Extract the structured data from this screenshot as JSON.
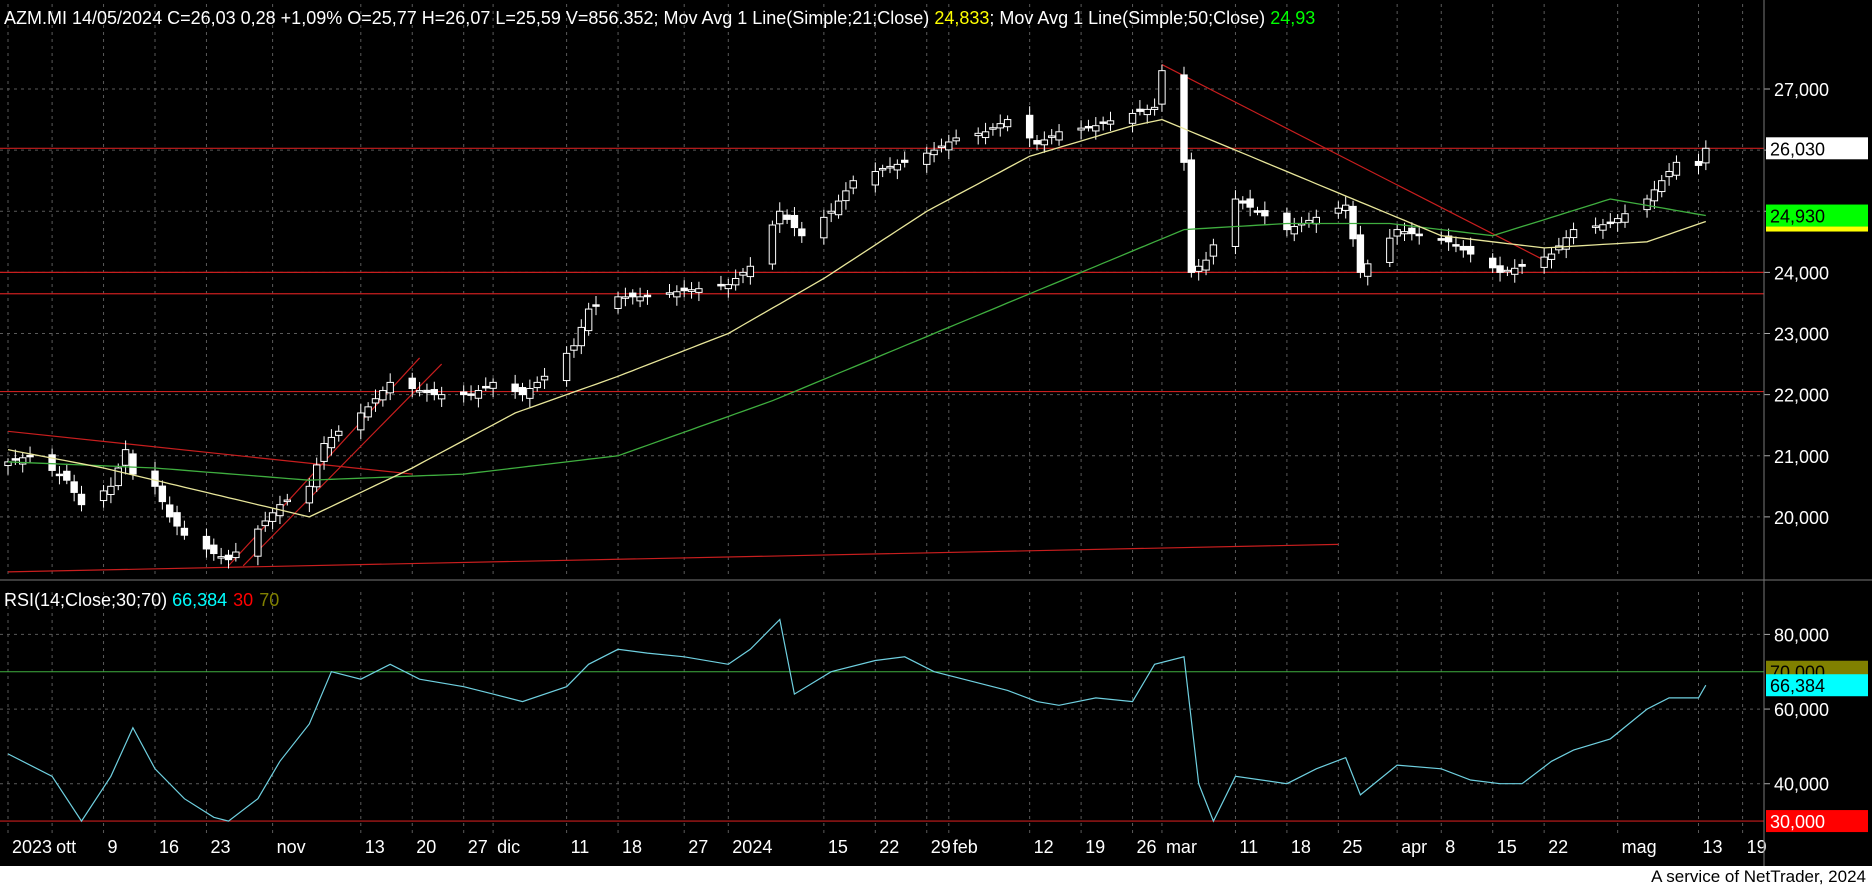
{
  "header": {
    "symbol_info": "AZM.MI 14/05/2024 C=26,03 0,28 +1,09% O=25,77 H=26,07 L=25,59 V=856.352",
    "ma21_label": "; Mov Avg 1 Line(Simple;21;Close) ",
    "ma21_value": "24,833",
    "ma50_label": "; Mov Avg 1 Line(Simple;50;Close) ",
    "ma50_value": "24,93"
  },
  "rsi_header": {
    "label": "RSI(14;Close;30;70) ",
    "value": "66,384",
    "low": "30",
    "high": "70"
  },
  "footer": {
    "text": "A service of NetTrader, 2024"
  },
  "colors": {
    "background": "#000000",
    "grid": "#5a5a5a",
    "candle": "#ffffff",
    "ma21": "#e8e69a",
    "ma50": "#3fae3f",
    "trendline": "#c81e1e",
    "rsi_line": "#6fd0e0",
    "rsi_value": "#00ffff",
    "rsi_high": "#808000",
    "last_price_tag": "#ffffff",
    "ma50_tag": "#00ff00",
    "ma21_tag": "#ffff00",
    "rsi_low_tag": "#ff0000"
  },
  "chart_data": [
    {
      "type": "candlestick",
      "ylim": [
        19000,
        27900
      ],
      "yticks": [
        20000,
        21000,
        22000,
        23000,
        24000,
        25000,
        26000,
        27000
      ],
      "ytick_labels": [
        "20,000",
        "21,000",
        "22,000",
        "23,000",
        "24,000",
        "",
        "26,000",
        "27,000"
      ],
      "price_tags": [
        {
          "label": "26,030",
          "value": 26030,
          "color": "#ffffff"
        },
        {
          "label": "24,930",
          "value": 24930,
          "color": "#00ff00"
        }
      ],
      "x_axis": {
        "first_date": "2023-09-26",
        "ticks": [
          {
            "label": "2023",
            "date": "2023-09-26"
          },
          {
            "label": "ott",
            "date": "2023-10-02"
          },
          {
            "label": "9",
            "date": "2023-10-09"
          },
          {
            "label": "16",
            "date": "2023-10-16"
          },
          {
            "label": "23",
            "date": "2023-10-23"
          },
          {
            "label": "nov",
            "date": "2023-11-01"
          },
          {
            "label": "13",
            "date": "2023-11-13"
          },
          {
            "label": "20",
            "date": "2023-11-20"
          },
          {
            "label": "27",
            "date": "2023-11-27"
          },
          {
            "label": "dic",
            "date": "2023-12-01"
          },
          {
            "label": "11",
            "date": "2023-12-11"
          },
          {
            "label": "18",
            "date": "2023-12-18"
          },
          {
            "label": "27",
            "date": "2023-12-27"
          },
          {
            "label": "2024",
            "date": "2024-01-02"
          },
          {
            "label": "15",
            "date": "2024-01-15"
          },
          {
            "label": "22",
            "date": "2024-01-22"
          },
          {
            "label": "29",
            "date": "2024-01-29"
          },
          {
            "label": "feb",
            "date": "2024-02-01"
          },
          {
            "label": "12",
            "date": "2024-02-12"
          },
          {
            "label": "19",
            "date": "2024-02-19"
          },
          {
            "label": "26",
            "date": "2024-02-26"
          },
          {
            "label": "mar",
            "date": "2024-03-01"
          },
          {
            "label": "11",
            "date": "2024-03-11"
          },
          {
            "label": "18",
            "date": "2024-03-18"
          },
          {
            "label": "25",
            "date": "2024-03-25"
          },
          {
            "label": "apr",
            "date": "2024-04-02"
          },
          {
            "label": "8",
            "date": "2024-04-08"
          },
          {
            "label": "15",
            "date": "2024-04-15"
          },
          {
            "label": "22",
            "date": "2024-04-22"
          },
          {
            "label": "mag",
            "date": "2024-05-02"
          },
          {
            "label": "13",
            "date": "2024-05-13"
          },
          {
            "label": "19",
            "date": "2024-05-19"
          }
        ]
      },
      "close_anchors": [
        [
          "2023-09-26",
          20900
        ],
        [
          "2023-09-29",
          21000
        ],
        [
          "2023-10-04",
          20600
        ],
        [
          "2023-10-06",
          20200
        ],
        [
          "2023-10-10",
          20500
        ],
        [
          "2023-10-12",
          21100
        ],
        [
          "2023-10-13",
          20700
        ],
        [
          "2023-10-16",
          20500
        ],
        [
          "2023-10-18",
          20000
        ],
        [
          "2023-10-20",
          19700
        ],
        [
          "2023-10-24",
          19400
        ],
        [
          "2023-10-26",
          19300
        ],
        [
          "2023-10-30",
          19800
        ],
        [
          "2023-11-02",
          20200
        ],
        [
          "2023-11-06",
          20500
        ],
        [
          "2023-11-08",
          21200
        ],
        [
          "2023-11-10",
          21400
        ],
        [
          "2023-11-14",
          21800
        ],
        [
          "2023-11-17",
          22200
        ],
        [
          "2023-11-20",
          22100
        ],
        [
          "2023-11-23",
          22000
        ],
        [
          "2023-11-28",
          22000
        ],
        [
          "2023-12-01",
          22200
        ],
        [
          "2023-12-05",
          22000
        ],
        [
          "2023-12-08",
          22300
        ],
        [
          "2023-12-12",
          22800
        ],
        [
          "2023-12-14",
          23400
        ],
        [
          "2023-12-18",
          23600
        ],
        [
          "2023-12-21",
          23600
        ],
        [
          "2023-12-27",
          23700
        ],
        [
          "2024-01-02",
          23800
        ],
        [
          "2024-01-05",
          24100
        ],
        [
          "2024-01-09",
          25000
        ],
        [
          "2024-01-12",
          24600
        ],
        [
          "2024-01-16",
          25000
        ],
        [
          "2024-01-19",
          25500
        ],
        [
          "2024-01-23",
          25700
        ],
        [
          "2024-01-26",
          25800
        ],
        [
          "2024-01-30",
          26000
        ],
        [
          "2024-02-02",
          26200
        ],
        [
          "2024-02-06",
          26300
        ],
        [
          "2024-02-09",
          26500
        ],
        [
          "2024-02-13",
          26100
        ],
        [
          "2024-02-16",
          26300
        ],
        [
          "2024-02-21",
          26400
        ],
        [
          "2024-02-26",
          26600
        ],
        [
          "2024-02-29",
          26700
        ],
        [
          "2024-03-01",
          27300
        ],
        [
          "2024-03-04",
          25800
        ],
        [
          "2024-03-05",
          24000
        ],
        [
          "2024-03-07",
          24200
        ],
        [
          "2024-03-11",
          25200
        ],
        [
          "2024-03-14",
          25000
        ],
        [
          "2024-03-18",
          24700
        ],
        [
          "2024-03-22",
          24900
        ],
        [
          "2024-03-26",
          25100
        ],
        [
          "2024-03-28",
          24000
        ],
        [
          "2024-04-02",
          24700
        ],
        [
          "2024-04-05",
          24600
        ],
        [
          "2024-04-09",
          24500
        ],
        [
          "2024-04-12",
          24300
        ],
        [
          "2024-04-16",
          24000
        ],
        [
          "2024-04-19",
          24100
        ],
        [
          "2024-04-23",
          24300
        ],
        [
          "2024-04-26",
          24700
        ],
        [
          "2024-05-01",
          24800
        ],
        [
          "2024-05-06",
          25200
        ],
        [
          "2024-05-08",
          25500
        ],
        [
          "2024-05-10",
          25800
        ],
        [
          "2024-05-13",
          25750
        ],
        [
          "2024-05-14",
          26030
        ]
      ],
      "ma21_anchors": [
        [
          "2023-09-26",
          21100
        ],
        [
          "2023-10-09",
          20800
        ],
        [
          "2023-10-23",
          20400
        ],
        [
          "2023-11-06",
          20000
        ],
        [
          "2023-11-20",
          20800
        ],
        [
          "2023-12-04",
          21700
        ],
        [
          "2023-12-18",
          22300
        ],
        [
          "2024-01-02",
          23000
        ],
        [
          "2024-01-15",
          23900
        ],
        [
          "2024-01-29",
          25000
        ],
        [
          "2024-02-12",
          25900
        ],
        [
          "2024-02-26",
          26400
        ],
        [
          "2024-03-01",
          26500
        ],
        [
          "2024-03-11",
          26000
        ],
        [
          "2024-03-25",
          25300
        ],
        [
          "2024-04-08",
          24600
        ],
        [
          "2024-04-22",
          24400
        ],
        [
          "2024-05-06",
          24500
        ],
        [
          "2024-05-14",
          24833
        ]
      ],
      "ma50_anchors": [
        [
          "2023-09-26",
          20900
        ],
        [
          "2023-10-16",
          20800
        ],
        [
          "2023-11-06",
          20600
        ],
        [
          "2023-11-27",
          20700
        ],
        [
          "2023-12-18",
          21000
        ],
        [
          "2024-01-08",
          21900
        ],
        [
          "2024-01-22",
          22600
        ],
        [
          "2024-02-05",
          23300
        ],
        [
          "2024-02-19",
          24000
        ],
        [
          "2024-03-04",
          24700
        ],
        [
          "2024-03-18",
          24800
        ],
        [
          "2024-04-01",
          24800
        ],
        [
          "2024-04-15",
          24600
        ],
        [
          "2024-05-01",
          25200
        ],
        [
          "2024-05-14",
          24930
        ]
      ],
      "horizontal_lines": [
        26030,
        24000,
        23650,
        22050
      ],
      "trendlines": [
        [
          [
            "2023-09-26",
            21400
          ],
          [
            "2023-11-20",
            20700
          ]
        ],
        [
          [
            "2023-09-26",
            19100
          ],
          [
            "2024-03-25",
            19550
          ]
        ],
        [
          [
            "2023-10-26",
            19200
          ],
          [
            "2023-11-21",
            22600
          ]
        ],
        [
          [
            "2023-10-28",
            19200
          ],
          [
            "2023-11-24",
            22500
          ]
        ],
        [
          [
            "2024-03-01",
            27400
          ],
          [
            "2024-04-22",
            24200
          ]
        ]
      ]
    },
    {
      "type": "line",
      "title": "RSI(14;Close;30;70)",
      "ylim": [
        26000,
        86000
      ],
      "yticks": [
        40000,
        60000,
        80000
      ],
      "ytick_labels": [
        "40,000",
        "60,000",
        "80,000"
      ],
      "levels": [
        30000,
        70000
      ],
      "price_tags": [
        {
          "label": "70,000",
          "value": 70000,
          "color": "#808000"
        },
        {
          "label": "66,384",
          "value": 66384,
          "color": "#00ffff"
        },
        {
          "label": "30,000",
          "value": 30000,
          "color": "#ff0000"
        }
      ],
      "series": [
        {
          "values": [
            [
              "2023-09-26",
              48000
            ],
            [
              "2023-10-02",
              42000
            ],
            [
              "2023-10-06",
              30000
            ],
            [
              "2023-10-10",
              42000
            ],
            [
              "2023-10-13",
              55000
            ],
            [
              "2023-10-16",
              44000
            ],
            [
              "2023-10-20",
              36000
            ],
            [
              "2023-10-24",
              31000
            ],
            [
              "2023-10-26",
              30000
            ],
            [
              "2023-10-30",
              36000
            ],
            [
              "2023-11-02",
              46000
            ],
            [
              "2023-11-06",
              56000
            ],
            [
              "2023-11-09",
              70000
            ],
            [
              "2023-11-13",
              68000
            ],
            [
              "2023-11-17",
              72000
            ],
            [
              "2023-11-21",
              68000
            ],
            [
              "2023-11-27",
              66000
            ],
            [
              "2023-12-01",
              64000
            ],
            [
              "2023-12-05",
              62000
            ],
            [
              "2023-12-11",
              66000
            ],
            [
              "2023-12-14",
              72000
            ],
            [
              "2023-12-18",
              76000
            ],
            [
              "2023-12-22",
              75000
            ],
            [
              "2023-12-27",
              74000
            ],
            [
              "2024-01-02",
              72000
            ],
            [
              "2024-01-05",
              76000
            ],
            [
              "2024-01-09",
              84000
            ],
            [
              "2024-01-11",
              64000
            ],
            [
              "2024-01-16",
              70000
            ],
            [
              "2024-01-22",
              73000
            ],
            [
              "2024-01-26",
              74000
            ],
            [
              "2024-01-30",
              70000
            ],
            [
              "2024-02-05",
              67000
            ],
            [
              "2024-02-09",
              65000
            ],
            [
              "2024-02-13",
              62000
            ],
            [
              "2024-02-16",
              61000
            ],
            [
              "2024-02-21",
              63000
            ],
            [
              "2024-02-26",
              62000
            ],
            [
              "2024-02-29",
              72000
            ],
            [
              "2024-03-04",
              74000
            ],
            [
              "2024-03-06",
              40000
            ],
            [
              "2024-03-08",
              30000
            ],
            [
              "2024-03-11",
              42000
            ],
            [
              "2024-03-18",
              40000
            ],
            [
              "2024-03-22",
              44000
            ],
            [
              "2024-03-26",
              47000
            ],
            [
              "2024-03-28",
              37000
            ],
            [
              "2024-04-02",
              45000
            ],
            [
              "2024-04-08",
              44000
            ],
            [
              "2024-04-12",
              41000
            ],
            [
              "2024-04-16",
              40000
            ],
            [
              "2024-04-19",
              40000
            ],
            [
              "2024-04-23",
              46000
            ],
            [
              "2024-04-26",
              49000
            ],
            [
              "2024-05-01",
              52000
            ],
            [
              "2024-05-06",
              60000
            ],
            [
              "2024-05-09",
              63000
            ],
            [
              "2024-05-13",
              63000
            ],
            [
              "2024-05-14",
              66384
            ]
          ]
        }
      ]
    }
  ]
}
